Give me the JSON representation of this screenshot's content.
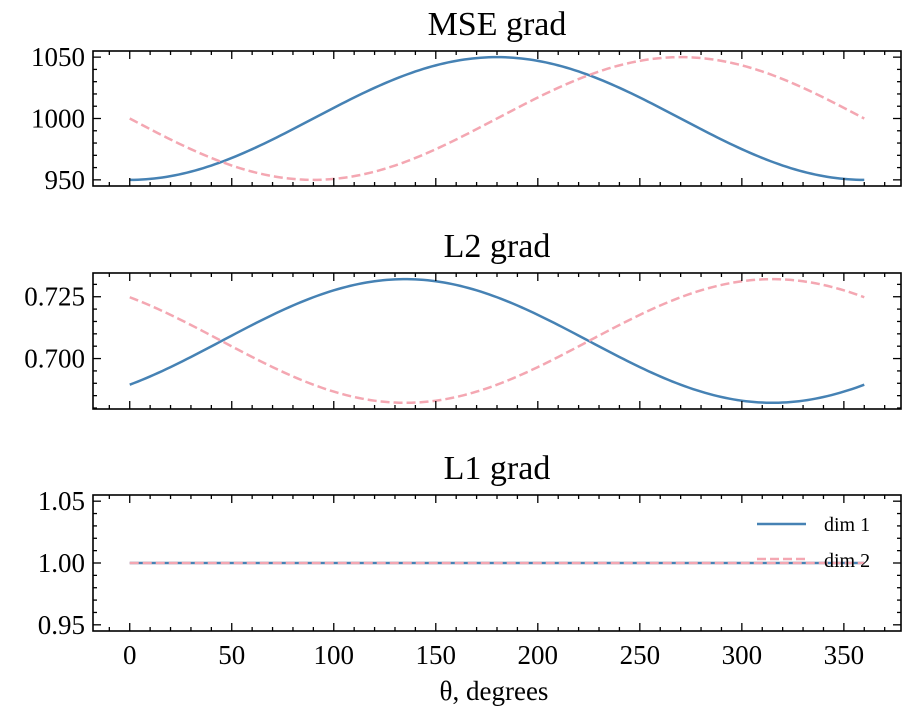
{
  "chart_data": [
    {
      "type": "line",
      "title": "MSE grad",
      "xlabel": "",
      "ylabel": "",
      "xlim": [
        -18,
        378
      ],
      "ylim": [
        945,
        1055
      ],
      "yticks": [
        950,
        1000,
        1050
      ],
      "ytick_labels": [
        "950",
        "1000",
        "1050"
      ],
      "series": [
        {
          "name": "dim 1",
          "color": "#4682B4",
          "style": "solid",
          "formula": "1000 - 50*cos(theta)",
          "x": [
            0,
            45,
            90,
            135,
            180,
            225,
            270,
            315,
            360
          ],
          "values": [
            950,
            964.6,
            1000,
            1035.4,
            1050,
            1035.4,
            1000,
            964.6,
            950
          ]
        },
        {
          "name": "dim 2",
          "color": "#F4A7B2",
          "style": "dashed",
          "formula": "1000 - 50*sin(theta)",
          "x": [
            0,
            45,
            90,
            135,
            180,
            225,
            270,
            315,
            360
          ],
          "values": [
            1000,
            964.6,
            950,
            964.6,
            1000,
            1035.4,
            1050,
            1035.4,
            1000
          ]
        }
      ]
    },
    {
      "type": "line",
      "title": "L2 grad",
      "xlabel": "",
      "ylabel": "",
      "xlim": [
        -18,
        378
      ],
      "ylim": [
        0.6796,
        0.7346
      ],
      "yticks": [
        0.7,
        0.725
      ],
      "ytick_labels": [
        "0.700",
        "0.725"
      ],
      "series": [
        {
          "name": "dim 1",
          "color": "#4682B4",
          "style": "solid",
          "formula": "0.7071 + 0.025*cos(theta - 135)",
          "x": [
            0,
            45,
            90,
            135,
            180,
            225,
            270,
            315,
            360
          ],
          "values": [
            0.6894,
            0.7071,
            0.7248,
            0.7321,
            0.7248,
            0.7071,
            0.6894,
            0.6821,
            0.6894
          ]
        },
        {
          "name": "dim 2",
          "color": "#F4A7B2",
          "style": "dashed",
          "formula": "0.7071 + 0.025*cos(theta - 315)",
          "x": [
            0,
            45,
            90,
            135,
            180,
            225,
            270,
            315,
            360
          ],
          "values": [
            0.7248,
            0.7071,
            0.6894,
            0.6821,
            0.6894,
            0.7071,
            0.7248,
            0.7321,
            0.7248
          ]
        }
      ]
    },
    {
      "type": "line",
      "title": "L1 grad",
      "xlabel": "θ, degrees",
      "ylabel": "",
      "xlim": [
        -18,
        378
      ],
      "ylim": [
        0.945,
        1.055
      ],
      "xticks": [
        0,
        50,
        100,
        150,
        200,
        250,
        300,
        350
      ],
      "xtick_labels": [
        "0",
        "50",
        "100",
        "150",
        "200",
        "250",
        "300",
        "350"
      ],
      "yticks": [
        0.95,
        1.0,
        1.05
      ],
      "ytick_labels": [
        "0.95",
        "1.00",
        "1.05"
      ],
      "legend": {
        "position": "right",
        "entries": [
          "dim 1",
          "dim 2"
        ]
      },
      "series": [
        {
          "name": "dim 1",
          "color": "#4682B4",
          "style": "solid",
          "x": [
            0,
            360
          ],
          "values": [
            1.0,
            1.0
          ]
        },
        {
          "name": "dim 2",
          "color": "#F4A7B2",
          "style": "dashed",
          "x": [
            0,
            360
          ],
          "values": [
            1.0,
            1.0
          ]
        }
      ]
    }
  ]
}
